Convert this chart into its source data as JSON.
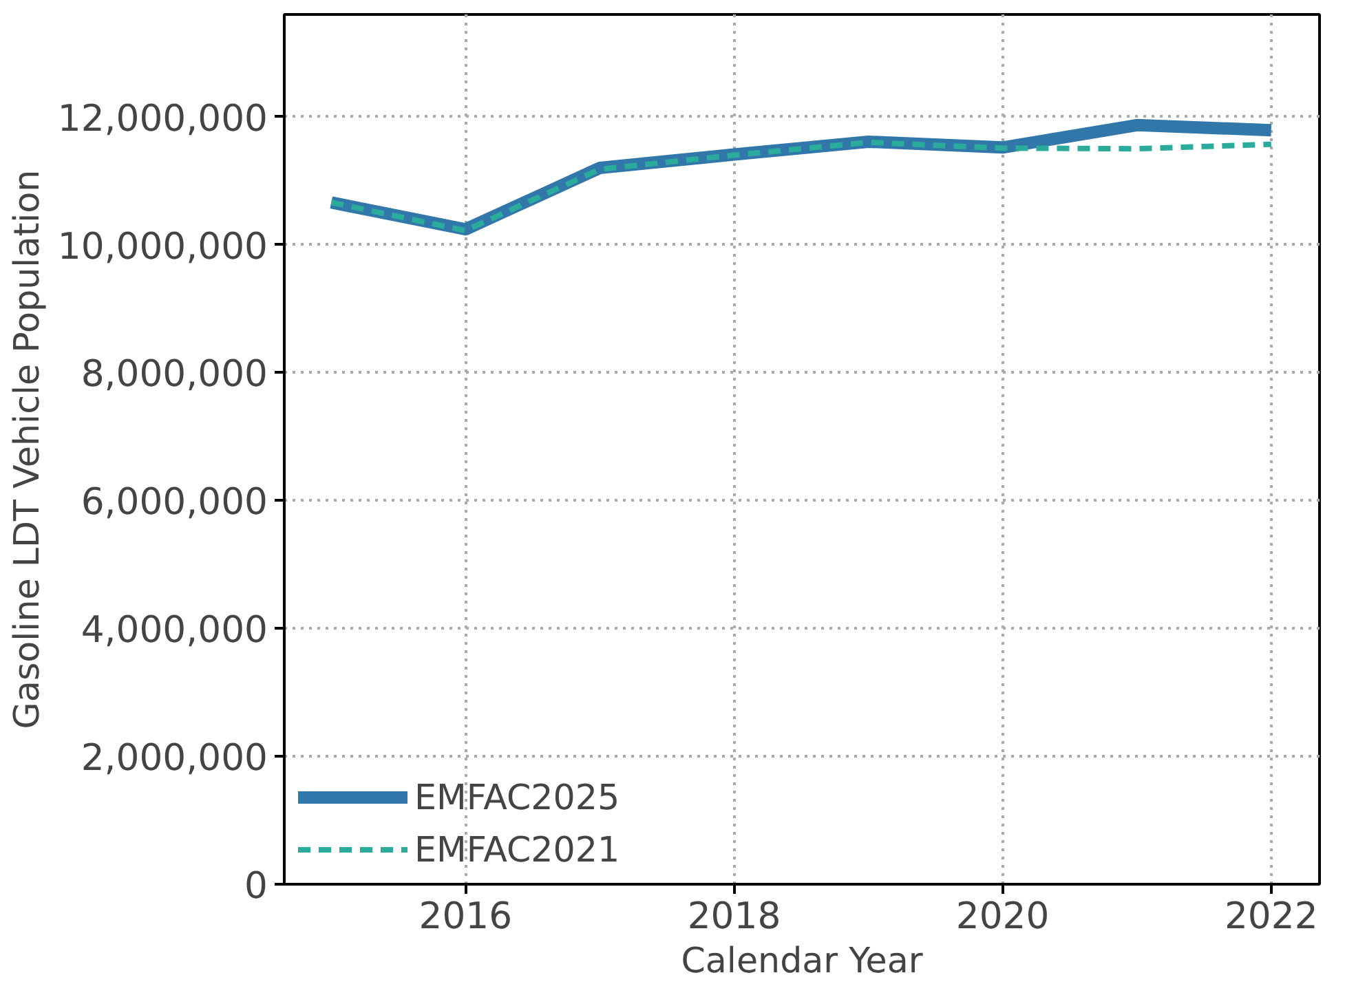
{
  "chart_data": {
    "type": "line",
    "xlabel": "Calendar Year",
    "ylabel": "Gasoline LDT Vehicle Population",
    "x": [
      2015,
      2016,
      2017,
      2018,
      2019,
      2020,
      2021,
      2022
    ],
    "series": [
      {
        "name": "EMFAC2025",
        "color": "#3277aa",
        "line_style": "solid",
        "values": [
          10660000,
          10240000,
          11200000,
          11410000,
          11610000,
          11520000,
          11870000,
          11790000
        ]
      },
      {
        "name": "EMFAC2021",
        "color": "#2aab9b",
        "line_style": "dashed",
        "values": [
          10660000,
          10220000,
          11180000,
          11400000,
          11600000,
          11510000,
          11500000,
          11570000
        ]
      }
    ],
    "xlim": [
      2014.65,
      2022.36
    ],
    "xticks": [
      2016,
      2018,
      2020,
      2022
    ],
    "ylim": [
      0,
      13600000
    ],
    "yticks": [
      {
        "value": 0,
        "label": "0"
      },
      {
        "value": 2000000,
        "label": "2,000,000"
      },
      {
        "value": 4000000,
        "label": "4,000,000"
      },
      {
        "value": 6000000,
        "label": "6,000,000"
      },
      {
        "value": 8000000,
        "label": "8,000,000"
      },
      {
        "value": 10000000,
        "label": "10,000,000"
      },
      {
        "value": 12000000,
        "label": "12,000,000"
      }
    ],
    "grid": true,
    "legend": "bottom left",
    "marker": "none"
  }
}
